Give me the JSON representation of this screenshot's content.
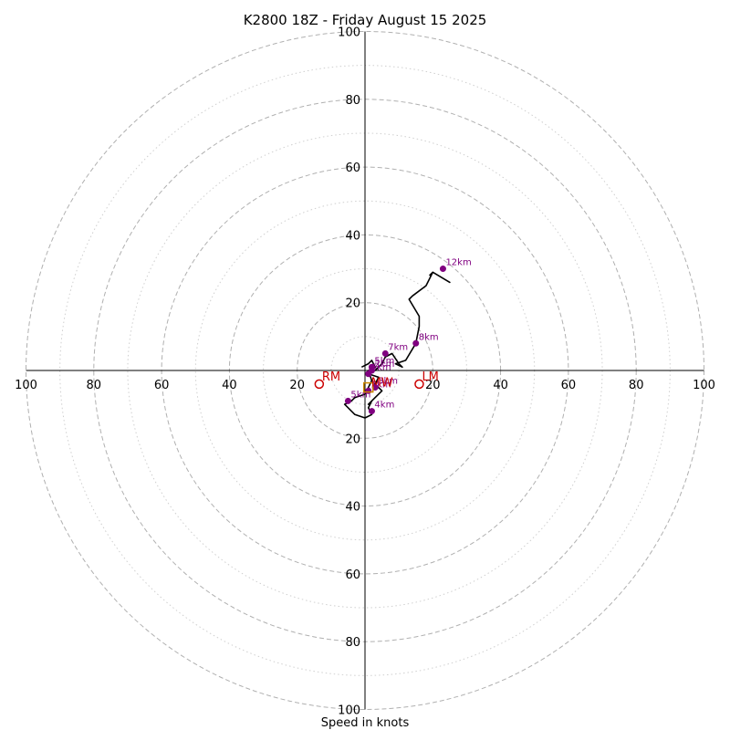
{
  "chart_data": {
    "type": "hodograph",
    "title": "K2800 18Z - Friday August 15 2025",
    "xlabel": "Speed in knots",
    "ring_labels": [
      "20",
      "40",
      "60",
      "80",
      "100"
    ],
    "range": [
      -100,
      100
    ],
    "rings_dashed": [
      20,
      40,
      60,
      80,
      100
    ],
    "rings_dotted": [
      10,
      30,
      50,
      70,
      90
    ],
    "hodograph_path": [
      [
        -1,
        1
      ],
      [
        1,
        2
      ],
      [
        2,
        3
      ],
      [
        3,
        1
      ],
      [
        1,
        -1
      ],
      [
        4,
        -2
      ],
      [
        3,
        -4
      ],
      [
        5,
        -6
      ],
      [
        3,
        -8
      ],
      [
        1,
        -10
      ],
      [
        2,
        -9
      ],
      [
        1,
        -11
      ],
      [
        2,
        -13
      ],
      [
        0,
        -14
      ],
      [
        -3,
        -13
      ],
      [
        -6,
        -10
      ],
      [
        -4,
        -9
      ],
      [
        -3,
        -8
      ],
      [
        0,
        -7
      ],
      [
        2,
        -3
      ],
      [
        1,
        0
      ],
      [
        3,
        0
      ],
      [
        5,
        2
      ],
      [
        6,
        4
      ],
      [
        8,
        5
      ],
      [
        10,
        2
      ],
      [
        11,
        1
      ],
      [
        9,
        2
      ],
      [
        12,
        3
      ],
      [
        15,
        8
      ],
      [
        16,
        13
      ],
      [
        16,
        16
      ],
      [
        13,
        21
      ],
      [
        14,
        22
      ],
      [
        18,
        25
      ],
      [
        20,
        29
      ],
      [
        25,
        26
      ],
      [
        20,
        29
      ],
      [
        19,
        28
      ]
    ],
    "height_markers": [
      {
        "label": "1km",
        "x": 1,
        "y": -6
      },
      {
        "label": "2km",
        "x": 2,
        "y": 0
      },
      {
        "label": "3km",
        "x": 3,
        "y": -5
      },
      {
        "label": "4km",
        "x": 2,
        "y": -12
      },
      {
        "label": "5km",
        "x": -5,
        "y": -9
      },
      {
        "label": "5km",
        "x": 2,
        "y": 1
      },
      {
        "label": "6km",
        "x": 1,
        "y": -1
      },
      {
        "label": "7km",
        "x": 6,
        "y": 5
      },
      {
        "label": "8km",
        "x": 15,
        "y": 8
      },
      {
        "label": "12km",
        "x": 23,
        "y": 30
      }
    ],
    "storm_motions": [
      {
        "label": "RM",
        "x": -13.5,
        "y": -4
      },
      {
        "label": "LM",
        "x": 16,
        "y": -4
      },
      {
        "label": "MW",
        "x": 1,
        "y": -5
      }
    ],
    "colors": {
      "hodograph": "#000000",
      "markers": "#800080",
      "storm_motion": "#cc0000",
      "rings": "#b0b0b0"
    }
  }
}
